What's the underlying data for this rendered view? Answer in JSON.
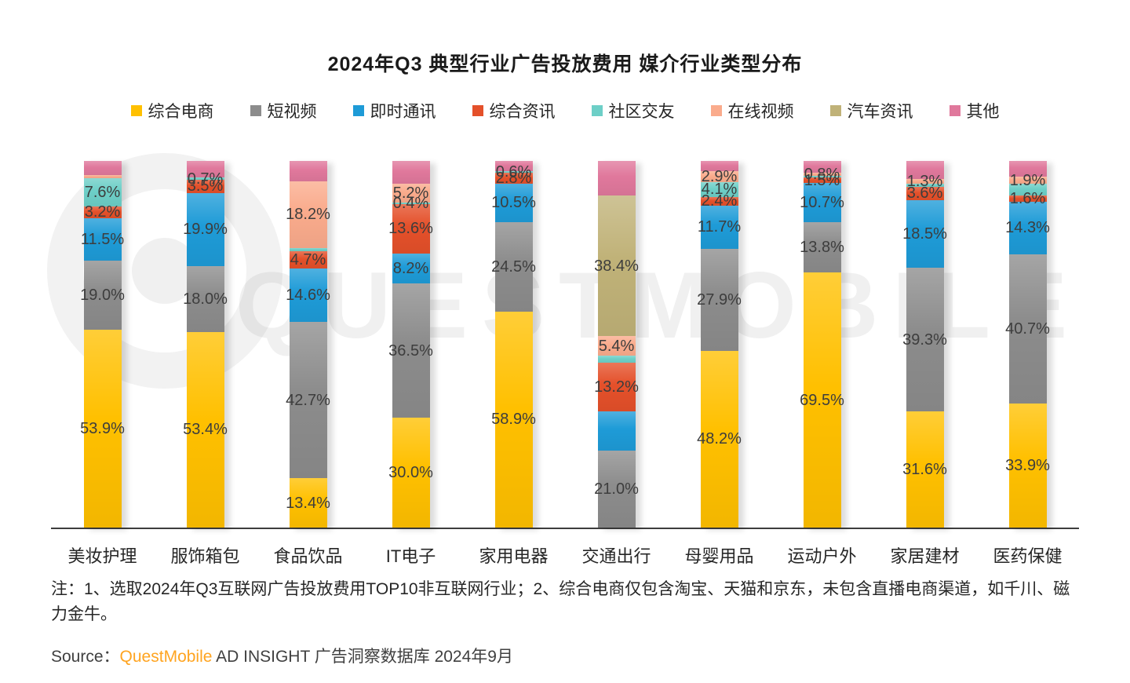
{
  "title": "2024年Q3 典型行业广告投放费用 媒介行业类型分布",
  "watermark": "QUESTMOBILE",
  "note": "注：1、选取2024年Q3互联网广告投放费用TOP10非互联网行业；2、综合电商仅包含淘宝、天猫和京东，未包含直播电商渠道，如千川、磁力金牛。",
  "source": {
    "prefix": "Source：",
    "brand": "QuestMobile",
    "suffix": " AD INSIGHT 广告洞察数据库 2024年9月"
  },
  "chart_data": {
    "type": "bar",
    "stacked": true,
    "unit": "%",
    "ylim": [
      0,
      100
    ],
    "legend_position": "top",
    "series": [
      {
        "name": "综合电商",
        "color": "#FFC000"
      },
      {
        "name": "短视频",
        "color": "#8C8C8C"
      },
      {
        "name": "即时通讯",
        "color": "#1E9BD7"
      },
      {
        "name": "综合资讯",
        "color": "#E4502A"
      },
      {
        "name": "社区交友",
        "color": "#6DCFC7"
      },
      {
        "name": "在线视频",
        "color": "#FAAB8C"
      },
      {
        "name": "汽车资讯",
        "color": "#C0B278"
      },
      {
        "name": "其他",
        "color": "#E0789C"
      }
    ],
    "categories": [
      "美妆护理",
      "服饰箱包",
      "食品饮品",
      "IT电子",
      "家用电器",
      "交通出行",
      "母婴用品",
      "运动户外",
      "家居建材",
      "医药保健"
    ],
    "bars": [
      {
        "category": "美妆护理",
        "values": [
          53.9,
          19.0,
          11.5,
          3.2,
          7.6,
          1.0,
          0,
          3.8
        ],
        "labeled": [
          true,
          true,
          true,
          true,
          true,
          false,
          false,
          false
        ]
      },
      {
        "category": "服饰箱包",
        "values": [
          53.4,
          18.0,
          19.9,
          3.5,
          0.7,
          0,
          0,
          4.5
        ],
        "labeled": [
          true,
          true,
          true,
          true,
          true,
          false,
          false,
          false
        ]
      },
      {
        "category": "食品饮品",
        "values": [
          13.4,
          42.7,
          14.6,
          4.7,
          0.9,
          18.2,
          0,
          5.5
        ],
        "labeled": [
          true,
          true,
          true,
          true,
          false,
          true,
          false,
          false
        ]
      },
      {
        "category": "IT电子",
        "values": [
          30.0,
          36.5,
          8.2,
          13.6,
          0.4,
          5.2,
          0,
          6.1
        ],
        "labeled": [
          true,
          true,
          true,
          true,
          true,
          true,
          false,
          false
        ]
      },
      {
        "category": "家用电器",
        "values": [
          58.9,
          24.5,
          10.5,
          2.8,
          0.6,
          0,
          0,
          2.7
        ],
        "labeled": [
          true,
          true,
          true,
          true,
          true,
          false,
          false,
          false
        ]
      },
      {
        "category": "交通出行",
        "values": [
          0,
          21.0,
          10.8,
          13.2,
          1.8,
          5.4,
          38.4,
          9.4
        ],
        "labeled": [
          false,
          true,
          false,
          true,
          false,
          true,
          true,
          false
        ]
      },
      {
        "category": "母婴用品",
        "values": [
          48.2,
          27.9,
          11.7,
          2.4,
          4.1,
          2.9,
          0,
          2.8
        ],
        "labeled": [
          true,
          true,
          true,
          true,
          true,
          true,
          false,
          false
        ]
      },
      {
        "category": "运动户外",
        "values": [
          69.5,
          13.8,
          10.7,
          1.5,
          0.4,
          0.8,
          0,
          3.3
        ],
        "labeled": [
          true,
          true,
          true,
          true,
          false,
          true,
          false,
          false
        ]
      },
      {
        "category": "家居建材",
        "values": [
          31.6,
          39.3,
          18.5,
          3.6,
          0.7,
          1.3,
          0,
          5.0
        ],
        "labeled": [
          true,
          true,
          true,
          true,
          false,
          true,
          false,
          false
        ]
      },
      {
        "category": "医药保健",
        "values": [
          33.9,
          40.7,
          14.3,
          1.6,
          3.3,
          1.9,
          0,
          4.2
        ],
        "labeled": [
          true,
          true,
          true,
          true,
          false,
          true,
          false,
          false
        ]
      }
    ]
  }
}
